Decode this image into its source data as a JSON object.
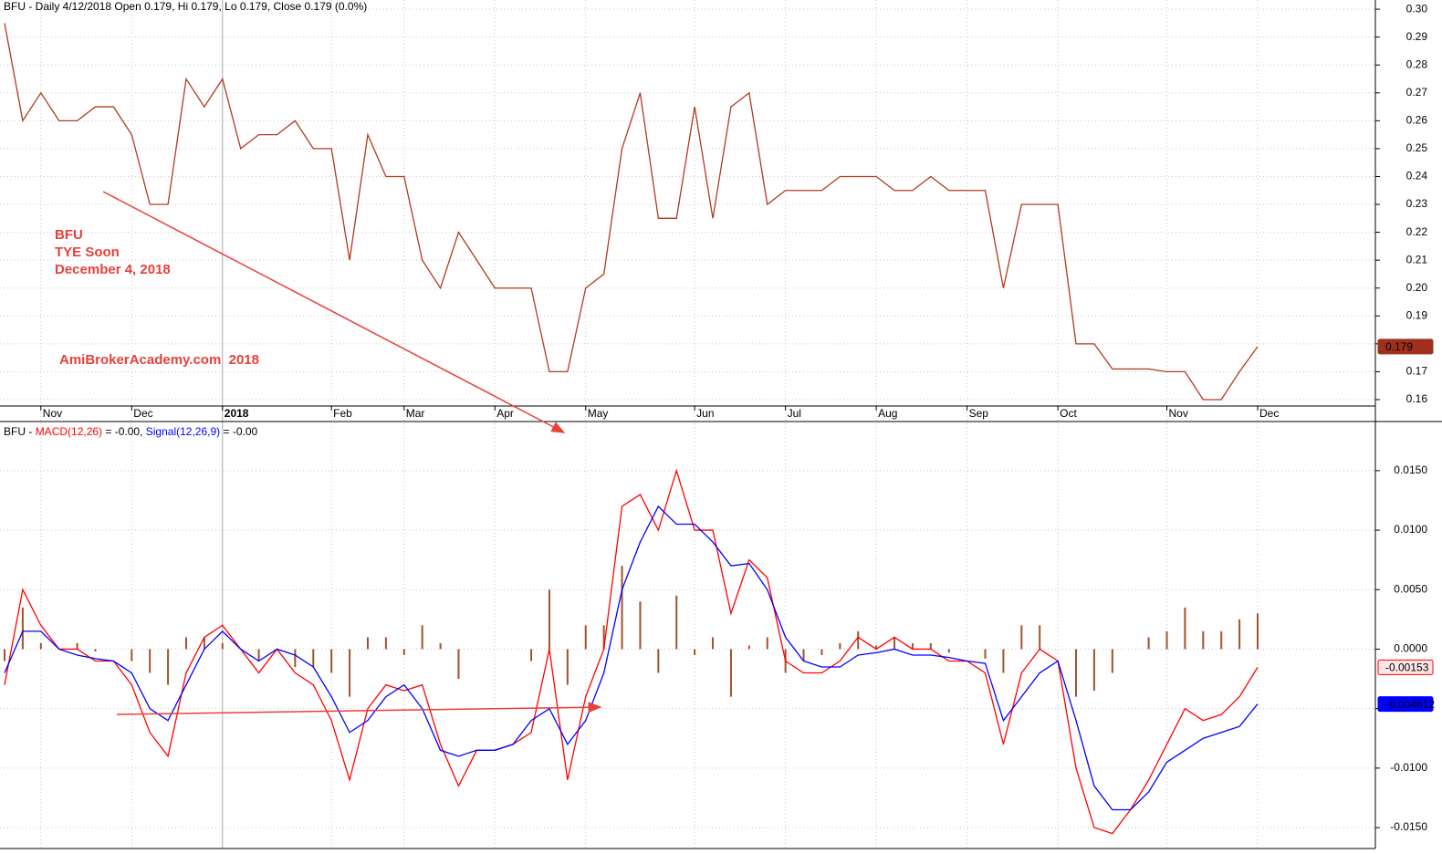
{
  "chart_data": [
    {
      "type": "line",
      "title": "BFU - Daily 4/12/2018 Open 0.179, Hi 0.179, Lo 0.179, Close 0.179 (0.0%)",
      "annotations": [
        "BFU",
        "TYE Soon",
        "December 4, 2018",
        "AmiBrokerAcademy.com  2018"
      ],
      "categories": [
        null,
        null,
        "Nov",
        null,
        null,
        null,
        null,
        "Dec",
        null,
        null,
        null,
        null,
        "2018",
        null,
        null,
        null,
        null,
        null,
        "Feb",
        null,
        null,
        null,
        "Mar",
        null,
        null,
        null,
        null,
        "Apr",
        null,
        null,
        null,
        null,
        "May",
        null,
        null,
        null,
        null,
        null,
        "Jun",
        null,
        null,
        null,
        null,
        "Jul",
        null,
        null,
        null,
        null,
        "Aug",
        null,
        null,
        null,
        null,
        "Sep",
        null,
        null,
        null,
        null,
        "Oct",
        null,
        null,
        null,
        null,
        null,
        "Nov",
        null,
        null,
        null,
        null,
        "Dec"
      ],
      "values": [
        0.295,
        0.26,
        0.27,
        0.26,
        0.26,
        0.265,
        0.265,
        0.255,
        0.23,
        0.23,
        0.275,
        0.265,
        0.275,
        0.25,
        0.255,
        0.255,
        0.26,
        0.25,
        0.25,
        0.21,
        0.255,
        0.24,
        0.24,
        0.21,
        0.2,
        0.22,
        0.21,
        0.2,
        0.2,
        0.2,
        0.17,
        0.17,
        0.2,
        0.205,
        0.25,
        0.27,
        0.225,
        0.225,
        0.265,
        0.225,
        0.265,
        0.27,
        0.23,
        0.235,
        0.235,
        0.235,
        0.24,
        0.24,
        0.24,
        0.235,
        0.235,
        0.24,
        0.235,
        0.235,
        0.235,
        0.2,
        0.23,
        0.23,
        0.23,
        0.18,
        0.18,
        0.171,
        0.171,
        0.171,
        0.17,
        0.17,
        0.16,
        0.16,
        0.17,
        0.179
      ],
      "color": "#b03a1f",
      "ylim": [
        0.1577,
        0.3033
      ],
      "yticks": [
        {
          "value": 0.3,
          "label": "0.30"
        },
        0.29,
        0.28,
        0.27,
        0.26,
        0.25,
        0.24,
        0.23,
        0.22,
        0.21,
        {
          "value": 0.2,
          "label": "0.20"
        },
        0.19,
        0.18,
        0.17,
        0.16
      ],
      "grid": true
    },
    {
      "type": "macd",
      "title": "BFU -",
      "series": [
        {
          "name": "MACD(12,26)",
          "readout": "= -0.00,",
          "type": "line",
          "color": "#ff0000",
          "values": [
            -0.003,
            0.005,
            0.002,
            0,
            0,
            -0.001,
            -0.001,
            -0.003,
            -0.007,
            -0.009,
            -0.002,
            0.001,
            0.002,
            0,
            -0.002,
            0,
            -0.002,
            -0.003,
            -0.006,
            -0.011,
            -0.005,
            -0.003,
            -0.0035,
            -0.003,
            -0.008,
            -0.0115,
            -0.0085,
            -0.0085,
            -0.008,
            -0.007,
            0,
            -0.011,
            -0.004,
            0,
            0.012,
            0.013,
            0.01,
            0.015,
            0.01,
            0.01,
            0.003,
            0.0075,
            0.006,
            -0.001,
            -0.002,
            -0.002,
            -0.001,
            0.001,
            0,
            0.001,
            0,
            0,
            -0.001,
            -0.001,
            -0.002,
            -0.008,
            -0.002,
            0,
            -0.001,
            -0.01,
            -0.015,
            -0.0155,
            -0.0135,
            -0.011,
            -0.008,
            -0.005,
            -0.006,
            -0.0055,
            -0.004,
            -0.00153
          ]
        },
        {
          "name": "Signal(12,26,9)",
          "readout": "= -0.00",
          "type": "line",
          "color": "#0000ff",
          "values": [
            -0.002,
            0.0015,
            0.0015,
            0,
            -0.0005,
            -0.0008,
            -0.001,
            -0.002,
            -0.005,
            -0.006,
            -0.003,
            0,
            0.0015,
            0,
            -0.001,
            0,
            -0.0005,
            -0.0015,
            -0.004,
            -0.007,
            -0.006,
            -0.004,
            -0.003,
            -0.005,
            -0.0085,
            -0.009,
            -0.0085,
            -0.0085,
            -0.008,
            -0.006,
            -0.005,
            -0.008,
            -0.006,
            -0.002,
            0.005,
            0.009,
            0.012,
            0.0105,
            0.0105,
            0.009,
            0.007,
            0.0072,
            0.005,
            0.001,
            -0.001,
            -0.0015,
            -0.0015,
            -0.0005,
            -0.0003,
            0,
            -0.0005,
            -0.0005,
            -0.0007,
            -0.001,
            -0.0012,
            -0.006,
            -0.004,
            -0.002,
            -0.001,
            -0.006,
            -0.0115,
            -0.0135,
            -0.0135,
            -0.012,
            -0.0095,
            -0.0085,
            -0.0075,
            -0.007,
            -0.0065,
            -0.004612
          ]
        },
        {
          "type": "bar",
          "color": "#a0522d",
          "values": [
            -0.001,
            0.0035,
            0.0005,
            0,
            0.0005,
            -0.0002,
            0,
            -0.001,
            -0.002,
            -0.003,
            0.001,
            0.001,
            0.0005,
            0,
            -0.001,
            0,
            -0.0015,
            -0.0015,
            -0.002,
            -0.004,
            0.001,
            0.001,
            -0.0005,
            0.002,
            0.0005,
            -0.0025,
            0,
            0,
            0,
            -0.001,
            0.005,
            -0.003,
            0.002,
            0.002,
            0.007,
            0.004,
            -0.002,
            0.0045,
            -0.0005,
            0.001,
            -0.004,
            0.0003,
            0.001,
            -0.002,
            -0.001,
            -0.0005,
            0.0005,
            0.0015,
            0.0003,
            0.001,
            0.0005,
            0.0005,
            -0.0003,
            0,
            -0.0008,
            -0.002,
            0.002,
            0.002,
            0,
            -0.004,
            -0.0035,
            -0.002,
            0,
            0.001,
            0.0015,
            0.0035,
            0.0015,
            0.0015,
            0.0025,
            0.003
          ]
        }
      ],
      "ylim": [
        -0.01676,
        0.01913
      ],
      "yticks": [
        {
          "value": 0.015,
          "label": "0.0150"
        },
        {
          "value": 0.01,
          "label": "0.0100"
        },
        {
          "value": 0.005,
          "label": "0.0050"
        },
        {
          "value": 0,
          "label": "0.0000"
        },
        {
          "value": -0.005,
          "label": "-0.0050"
        },
        {
          "value": -0.01,
          "label": "-0.0100"
        },
        {
          "value": -0.015,
          "label": "-0.0150"
        }
      ],
      "grid": true
    }
  ]
}
